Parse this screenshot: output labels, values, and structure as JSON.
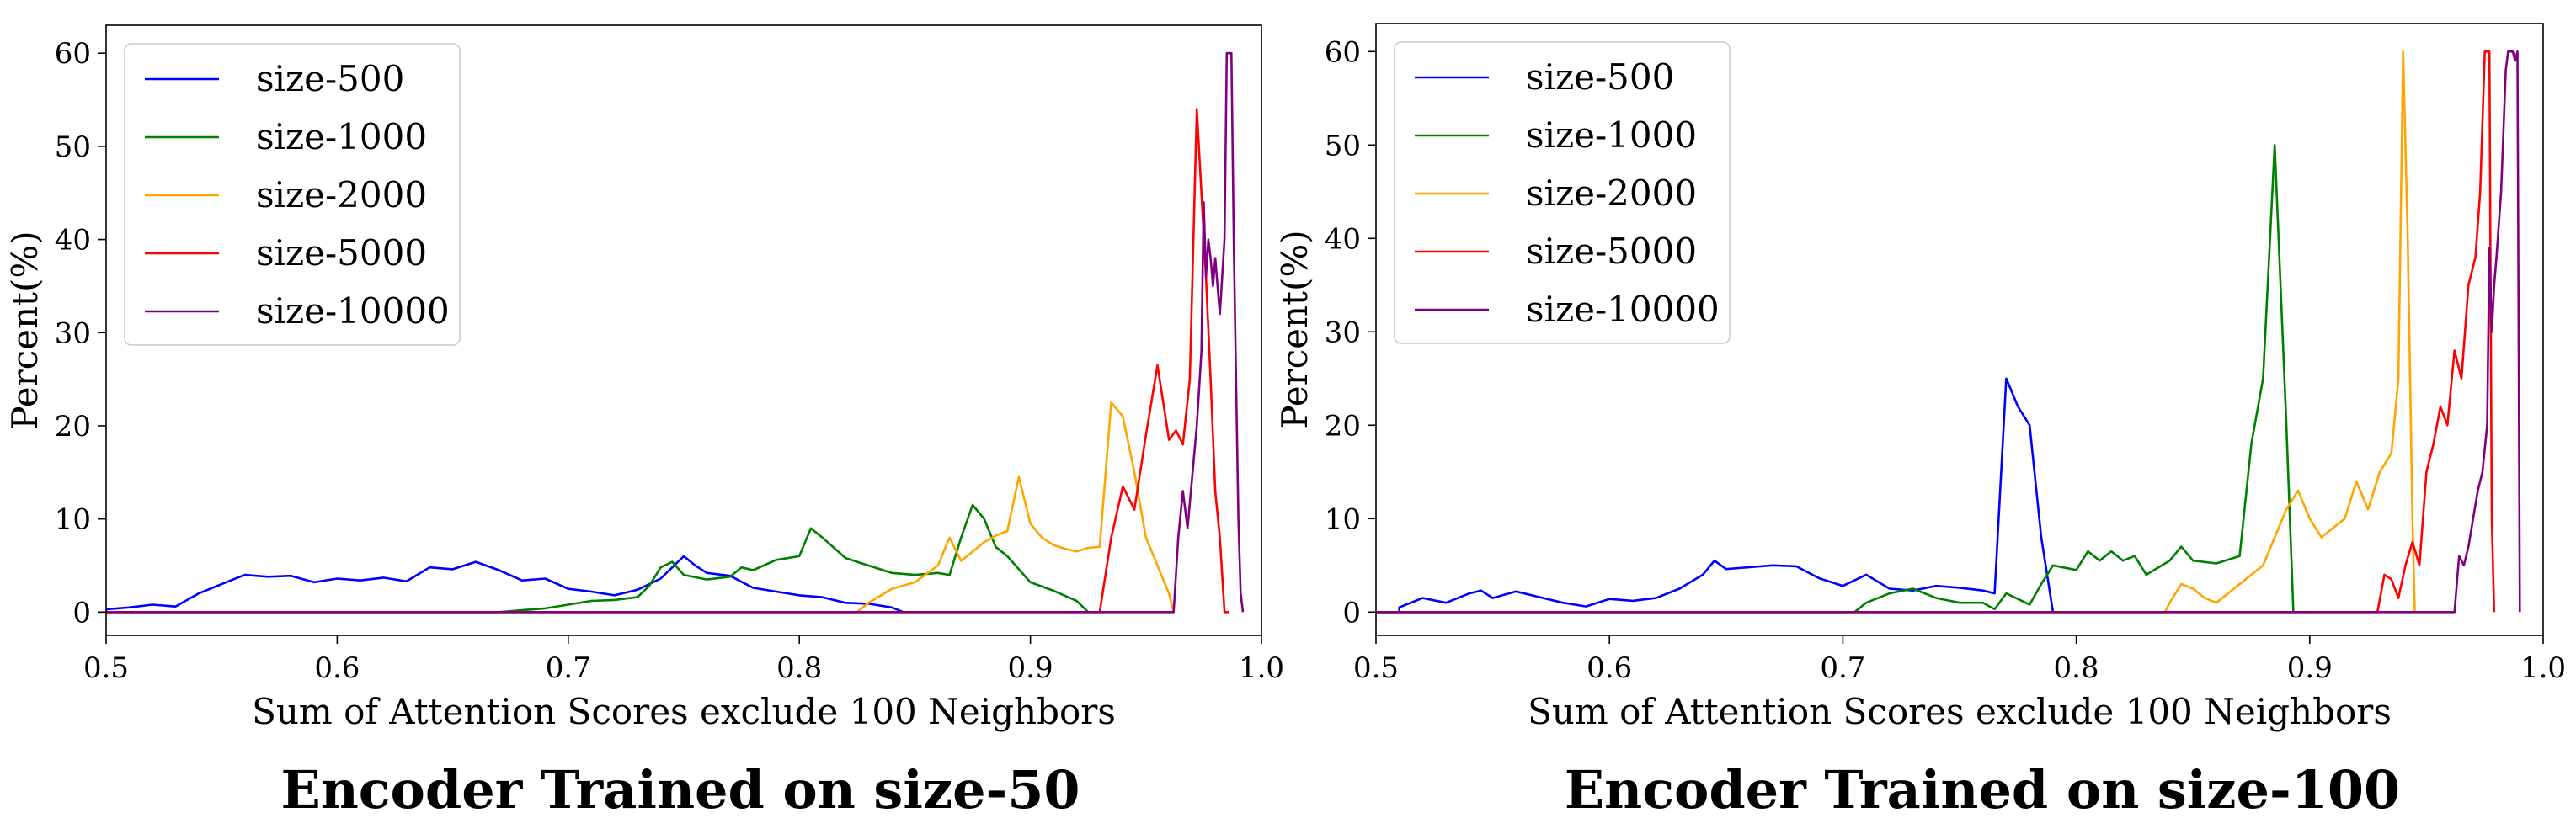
{
  "chart_data": [
    {
      "type": "line",
      "caption": "Encoder Trained on size-50",
      "xlabel": "Sum of Attention Scores exclude 100 Neighbors",
      "ylabel": "Percent(%)",
      "xlim": [
        0.5,
        1.0
      ],
      "ylim": [
        -2.5,
        63
      ],
      "xticks": [
        "0.5",
        "0.6",
        "0.7",
        "0.8",
        "0.9",
        "1.0"
      ],
      "yticks": [
        "0",
        "10",
        "20",
        "30",
        "40",
        "50",
        "60"
      ],
      "legend_position": "upper-left",
      "series": [
        {
          "name": "size-500",
          "color": "#0000ff",
          "x": [
            0.5,
            0.51,
            0.52,
            0.53,
            0.54,
            0.55,
            0.56,
            0.57,
            0.58,
            0.59,
            0.6,
            0.61,
            0.62,
            0.63,
            0.64,
            0.65,
            0.66,
            0.67,
            0.68,
            0.69,
            0.7,
            0.71,
            0.72,
            0.73,
            0.74,
            0.745,
            0.75,
            0.755,
            0.76,
            0.77,
            0.78,
            0.79,
            0.8,
            0.81,
            0.82,
            0.83,
            0.84,
            0.845
          ],
          "y": [
            0.3,
            0.5,
            0.8,
            0.6,
            2.0,
            3.0,
            4.0,
            3.8,
            3.9,
            3.2,
            3.6,
            3.4,
            3.7,
            3.3,
            4.8,
            4.6,
            5.4,
            4.5,
            3.4,
            3.6,
            2.5,
            2.2,
            1.8,
            2.4,
            3.6,
            4.8,
            6.0,
            5.0,
            4.2,
            3.9,
            2.6,
            2.2,
            1.8,
            1.6,
            1.0,
            0.9,
            0.5,
            0.0
          ]
        },
        {
          "name": "size-1000",
          "color": "#008000",
          "x": [
            0.67,
            0.68,
            0.69,
            0.7,
            0.71,
            0.72,
            0.73,
            0.735,
            0.74,
            0.745,
            0.75,
            0.76,
            0.77,
            0.775,
            0.78,
            0.79,
            0.8,
            0.805,
            0.81,
            0.82,
            0.83,
            0.84,
            0.85,
            0.86,
            0.865,
            0.87,
            0.875,
            0.88,
            0.885,
            0.89,
            0.9,
            0.91,
            0.92,
            0.925
          ],
          "y": [
            0.0,
            0.2,
            0.4,
            0.8,
            1.2,
            1.3,
            1.6,
            2.8,
            4.8,
            5.4,
            4.0,
            3.5,
            3.8,
            4.8,
            4.5,
            5.6,
            6.0,
            9.0,
            8.0,
            5.8,
            5.0,
            4.2,
            4.0,
            4.2,
            4.0,
            8.0,
            11.5,
            10.0,
            7.0,
            6.0,
            3.2,
            2.3,
            1.2,
            0.0
          ]
        },
        {
          "name": "size-2000",
          "color": "#ffa500",
          "x": [
            0.825,
            0.83,
            0.84,
            0.85,
            0.86,
            0.865,
            0.87,
            0.875,
            0.88,
            0.885,
            0.89,
            0.895,
            0.9,
            0.905,
            0.91,
            0.915,
            0.92,
            0.925,
            0.93,
            0.935,
            0.94,
            0.945,
            0.95,
            0.955,
            0.96,
            0.962
          ],
          "y": [
            0.0,
            1.0,
            2.5,
            3.2,
            5.0,
            8.0,
            5.5,
            6.5,
            7.5,
            8.2,
            8.7,
            14.5,
            9.5,
            8.0,
            7.2,
            6.8,
            6.5,
            6.9,
            7.0,
            22.5,
            21.0,
            15.0,
            8.0,
            5.0,
            2.0,
            0.0
          ]
        },
        {
          "name": "size-5000",
          "color": "#ff0000",
          "x": [
            0.93,
            0.935,
            0.94,
            0.945,
            0.95,
            0.955,
            0.96,
            0.963,
            0.966,
            0.969,
            0.972,
            0.974,
            0.976,
            0.978,
            0.98,
            0.982,
            0.984,
            0.985,
            0.986
          ],
          "y": [
            0.0,
            8.0,
            13.5,
            11.0,
            19.0,
            26.5,
            18.5,
            19.5,
            18.0,
            25.0,
            54.0,
            45.0,
            36.0,
            25.0,
            13.0,
            8.0,
            0.0,
            0.0,
            0.0
          ]
        },
        {
          "name": "size-10000",
          "color": "#800080",
          "x": [
            0.962,
            0.964,
            0.966,
            0.968,
            0.97,
            0.972,
            0.974,
            0.975,
            0.976,
            0.977,
            0.978,
            0.979,
            0.98,
            0.982,
            0.984,
            0.985,
            0.986,
            0.987,
            0.988,
            0.989,
            0.99,
            0.991,
            0.992
          ],
          "y": [
            0.0,
            8.0,
            13.0,
            9.0,
            14.5,
            20.0,
            28.0,
            44.0,
            36.0,
            40.0,
            38.0,
            35.0,
            38.0,
            32.0,
            40.0,
            60.0,
            60.0,
            60.0,
            40.0,
            25.0,
            10.0,
            2.0,
            0.0
          ]
        }
      ]
    },
    {
      "type": "line",
      "caption": "Encoder Trained on size-100",
      "xlabel": "Sum of Attention Scores exclude 100 Neighbors",
      "ylabel": "Percent(%)",
      "xlim": [
        0.5,
        1.0
      ],
      "ylim": [
        -2.5,
        63
      ],
      "xticks": [
        "0.5",
        "0.6",
        "0.7",
        "0.8",
        "0.9",
        "1.0"
      ],
      "yticks": [
        "0",
        "10",
        "20",
        "30",
        "40",
        "50",
        "60"
      ],
      "legend_position": "upper-left",
      "series": [
        {
          "name": "size-500",
          "color": "#0000ff",
          "x": [
            0.51,
            0.52,
            0.53,
            0.54,
            0.545,
            0.55,
            0.56,
            0.57,
            0.58,
            0.59,
            0.6,
            0.61,
            0.62,
            0.63,
            0.64,
            0.645,
            0.65,
            0.66,
            0.67,
            0.68,
            0.69,
            0.7,
            0.71,
            0.72,
            0.73,
            0.74,
            0.75,
            0.76,
            0.765,
            0.77,
            0.775,
            0.78,
            0.785,
            0.79
          ],
          "y": [
            0.5,
            1.5,
            1.0,
            2.0,
            2.3,
            1.5,
            2.2,
            1.6,
            1.0,
            0.6,
            1.4,
            1.2,
            1.5,
            2.5,
            4.0,
            5.5,
            4.6,
            4.8,
            5.0,
            4.9,
            3.6,
            2.8,
            4.0,
            2.5,
            2.3,
            2.8,
            2.6,
            2.3,
            2.0,
            25.0,
            22.0,
            20.0,
            8.0,
            0.0
          ]
        },
        {
          "name": "size-1000",
          "color": "#008000",
          "x": [
            0.705,
            0.71,
            0.72,
            0.73,
            0.74,
            0.75,
            0.76,
            0.765,
            0.77,
            0.78,
            0.785,
            0.79,
            0.8,
            0.805,
            0.81,
            0.815,
            0.82,
            0.825,
            0.83,
            0.84,
            0.845,
            0.85,
            0.86,
            0.87,
            0.875,
            0.88,
            0.885,
            0.89,
            0.893
          ],
          "y": [
            0.0,
            1.0,
            2.0,
            2.5,
            1.5,
            1.0,
            1.0,
            0.3,
            2.0,
            0.8,
            3.0,
            5.0,
            4.5,
            6.5,
            5.5,
            6.5,
            5.5,
            6.0,
            4.0,
            5.5,
            7.0,
            5.5,
            5.2,
            6.0,
            18.0,
            25.0,
            50.0,
            20.0,
            0.0
          ]
        },
        {
          "name": "size-2000",
          "color": "#ffa500",
          "x": [
            0.838,
            0.84,
            0.845,
            0.85,
            0.855,
            0.86,
            0.865,
            0.87,
            0.875,
            0.88,
            0.885,
            0.89,
            0.895,
            0.9,
            0.905,
            0.91,
            0.915,
            0.92,
            0.925,
            0.93,
            0.935,
            0.938,
            0.94,
            0.942,
            0.944,
            0.945
          ],
          "y": [
            0.0,
            1.0,
            3.0,
            2.5,
            1.5,
            1.0,
            2.0,
            3.0,
            4.0,
            5.0,
            8.0,
            11.0,
            13.0,
            10.0,
            8.0,
            9.0,
            10.0,
            14.0,
            11.0,
            15.0,
            17.0,
            25.0,
            60.0,
            40.0,
            10.0,
            0.0
          ]
        },
        {
          "name": "size-5000",
          "color": "#ff0000",
          "x": [
            0.929,
            0.932,
            0.935,
            0.938,
            0.941,
            0.944,
            0.947,
            0.95,
            0.953,
            0.956,
            0.959,
            0.962,
            0.965,
            0.968,
            0.971,
            0.973,
            0.975,
            0.977,
            0.978,
            0.979
          ],
          "y": [
            0.0,
            4.0,
            3.5,
            1.5,
            5.0,
            7.5,
            5.0,
            15.0,
            18.0,
            22.0,
            20.0,
            28.0,
            25.0,
            35.0,
            38.0,
            45.0,
            60.0,
            60.0,
            10.0,
            0.0
          ]
        },
        {
          "name": "size-10000",
          "color": "#800080",
          "x": [
            0.962,
            0.964,
            0.966,
            0.968,
            0.97,
            0.972,
            0.974,
            0.976,
            0.977,
            0.978,
            0.979,
            0.98,
            0.982,
            0.984,
            0.985,
            0.986,
            0.987,
            0.988,
            0.989,
            0.99
          ],
          "y": [
            0.0,
            6.0,
            5.0,
            7.0,
            10.0,
            13.0,
            15.0,
            20.0,
            39.0,
            30.0,
            35.0,
            38.0,
            45.0,
            58.0,
            60.0,
            60.0,
            60.0,
            59.0,
            60.0,
            0.0
          ]
        }
      ]
    }
  ]
}
